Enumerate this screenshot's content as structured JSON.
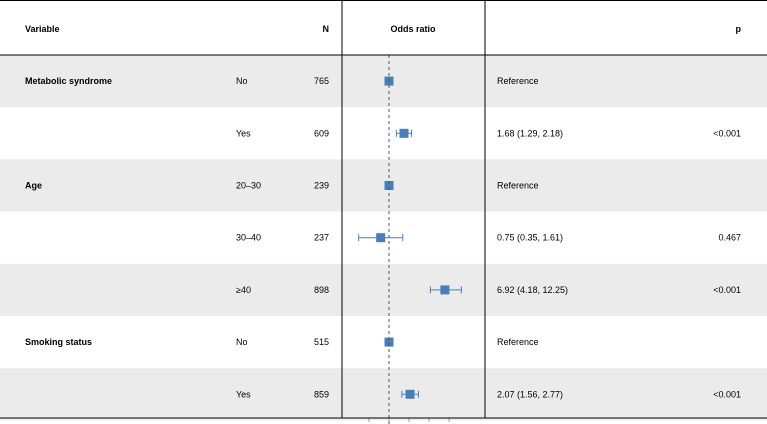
{
  "header": {
    "variable": "Variable",
    "n": "N",
    "odds_ratio": "Odds ratio",
    "p": "p"
  },
  "colors": {
    "point": "#4a7fb5",
    "shade": "#ebebeb",
    "border": "#000000",
    "reference_line": "#555555"
  },
  "chart_data": {
    "type": "forest",
    "reference_value": 1,
    "rows": [
      {
        "variable": "Metabolic syndrome",
        "level": "No",
        "n": "765",
        "or": 1.0,
        "lo": 1.0,
        "hi": 1.0,
        "estimate_text": "Reference",
        "p": ""
      },
      {
        "variable": "",
        "level": "Yes",
        "n": "609",
        "or": 1.68,
        "lo": 1.29,
        "hi": 2.18,
        "estimate_text": "1.68 (1.29, 2.18)",
        "p": "<0.001"
      },
      {
        "variable": "Age",
        "level": "20–30",
        "n": "239",
        "or": 1.0,
        "lo": 1.0,
        "hi": 1.0,
        "estimate_text": "Reference",
        "p": ""
      },
      {
        "variable": "",
        "level": "30–40",
        "n": "237",
        "or": 0.75,
        "lo": 0.35,
        "hi": 1.61,
        "estimate_text": "0.75 (0.35, 1.61)",
        "p": "0.467"
      },
      {
        "variable": "",
        "level": "≥40",
        "n": "898",
        "or": 6.92,
        "lo": 4.18,
        "hi": 12.25,
        "estimate_text": "6.92 (4.18, 12.25)",
        "p": "<0.001"
      },
      {
        "variable": "Smoking status",
        "level": "No",
        "n": "515",
        "or": 1.0,
        "lo": 1.0,
        "hi": 1.0,
        "estimate_text": "Reference",
        "p": ""
      },
      {
        "variable": "",
        "level": "Yes",
        "n": "859",
        "or": 2.07,
        "lo": 1.56,
        "hi": 2.77,
        "estimate_text": "2.07 (1.56, 2.77)",
        "p": "<0.001"
      }
    ]
  }
}
